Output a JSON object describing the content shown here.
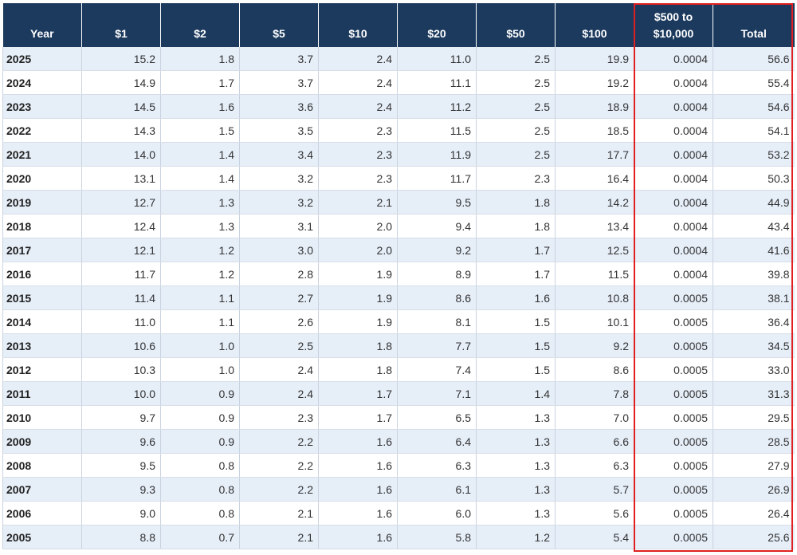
{
  "table": {
    "headers": [
      "Year",
      "$1",
      "$2",
      "$5",
      "$10",
      "$20",
      "$50",
      "$100",
      "$500 to $10,000",
      "Total"
    ],
    "header_lines": {
      "col8": [
        "$500 to",
        "$10,000"
      ]
    },
    "rows": [
      [
        "2025",
        "15.2",
        "1.8",
        "3.7",
        "2.4",
        "11.0",
        "2.5",
        "19.9",
        "0.0004",
        "56.6"
      ],
      [
        "2024",
        "14.9",
        "1.7",
        "3.7",
        "2.4",
        "11.1",
        "2.5",
        "19.2",
        "0.0004",
        "55.4"
      ],
      [
        "2023",
        "14.5",
        "1.6",
        "3.6",
        "2.4",
        "11.2",
        "2.5",
        "18.9",
        "0.0004",
        "54.6"
      ],
      [
        "2022",
        "14.3",
        "1.5",
        "3.5",
        "2.3",
        "11.5",
        "2.5",
        "18.5",
        "0.0004",
        "54.1"
      ],
      [
        "2021",
        "14.0",
        "1.4",
        "3.4",
        "2.3",
        "11.9",
        "2.5",
        "17.7",
        "0.0004",
        "53.2"
      ],
      [
        "2020",
        "13.1",
        "1.4",
        "3.2",
        "2.3",
        "11.7",
        "2.3",
        "16.4",
        "0.0004",
        "50.3"
      ],
      [
        "2019",
        "12.7",
        "1.3",
        "3.2",
        "2.1",
        "9.5",
        "1.8",
        "14.2",
        "0.0004",
        "44.9"
      ],
      [
        "2018",
        "12.4",
        "1.3",
        "3.1",
        "2.0",
        "9.4",
        "1.8",
        "13.4",
        "0.0004",
        "43.4"
      ],
      [
        "2017",
        "12.1",
        "1.2",
        "3.0",
        "2.0",
        "9.2",
        "1.7",
        "12.5",
        "0.0004",
        "41.6"
      ],
      [
        "2016",
        "11.7",
        "1.2",
        "2.8",
        "1.9",
        "8.9",
        "1.7",
        "11.5",
        "0.0004",
        "39.8"
      ],
      [
        "2015",
        "11.4",
        "1.1",
        "2.7",
        "1.9",
        "8.6",
        "1.6",
        "10.8",
        "0.0005",
        "38.1"
      ],
      [
        "2014",
        "11.0",
        "1.1",
        "2.6",
        "1.9",
        "8.1",
        "1.5",
        "10.1",
        "0.0005",
        "36.4"
      ],
      [
        "2013",
        "10.6",
        "1.0",
        "2.5",
        "1.8",
        "7.7",
        "1.5",
        "9.2",
        "0.0005",
        "34.5"
      ],
      [
        "2012",
        "10.3",
        "1.0",
        "2.4",
        "1.8",
        "7.4",
        "1.5",
        "8.6",
        "0.0005",
        "33.0"
      ],
      [
        "2011",
        "10.0",
        "0.9",
        "2.4",
        "1.7",
        "7.1",
        "1.4",
        "7.8",
        "0.0005",
        "31.3"
      ],
      [
        "2010",
        "9.7",
        "0.9",
        "2.3",
        "1.7",
        "6.5",
        "1.3",
        "7.0",
        "0.0005",
        "29.5"
      ],
      [
        "2009",
        "9.6",
        "0.9",
        "2.2",
        "1.6",
        "6.4",
        "1.3",
        "6.6",
        "0.0005",
        "28.5"
      ],
      [
        "2008",
        "9.5",
        "0.8",
        "2.2",
        "1.6",
        "6.3",
        "1.3",
        "6.3",
        "0.0005",
        "27.9"
      ],
      [
        "2007",
        "9.3",
        "0.8",
        "2.2",
        "1.6",
        "6.1",
        "1.3",
        "5.7",
        "0.0005",
        "26.9"
      ],
      [
        "2006",
        "9.0",
        "0.8",
        "2.1",
        "1.6",
        "6.0",
        "1.3",
        "5.6",
        "0.0005",
        "26.4"
      ],
      [
        "2005",
        "8.8",
        "0.7",
        "2.1",
        "1.6",
        "5.8",
        "1.2",
        "5.4",
        "0.0005",
        "25.6"
      ]
    ]
  },
  "colors": {
    "header_bg": "#1c3a5e",
    "row_alt_bg": "#e6eef8",
    "highlight_border": "#e02020"
  }
}
